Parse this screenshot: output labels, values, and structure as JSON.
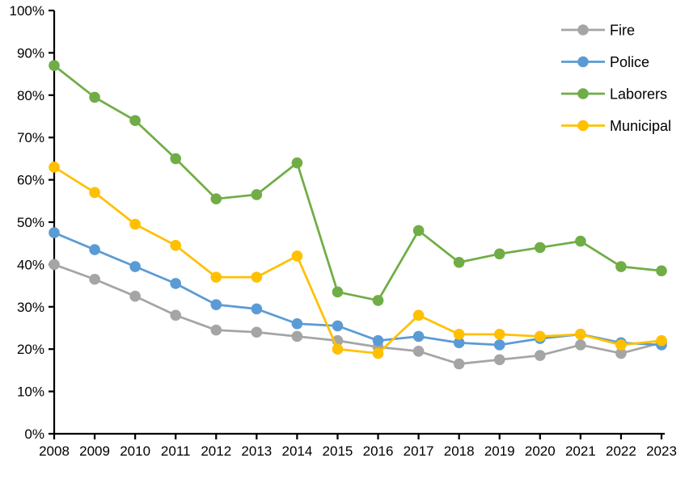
{
  "chart_data": {
    "type": "line",
    "title": "",
    "xlabel": "",
    "ylabel": "",
    "x": [
      2008,
      2009,
      2010,
      2011,
      2012,
      2013,
      2014,
      2015,
      2016,
      2017,
      2018,
      2019,
      2020,
      2021,
      2022,
      2023
    ],
    "series": [
      {
        "name": "Fire",
        "color": "#A5A5A5",
        "values": [
          40,
          36.5,
          32.5,
          28,
          24.5,
          24,
          23,
          22,
          20.5,
          19.5,
          16.5,
          17.5,
          18.5,
          21,
          19,
          21.5
        ]
      },
      {
        "name": "Police",
        "color": "#5B9BD5",
        "values": [
          47.5,
          43.5,
          39.5,
          35.5,
          30.5,
          29.5,
          26,
          25.5,
          22,
          23,
          21.5,
          21,
          22.5,
          23.5,
          21.5,
          21
        ]
      },
      {
        "name": "Laborers",
        "color": "#70AD47",
        "values": [
          87,
          79.5,
          74,
          65,
          55.5,
          56.5,
          64,
          33.5,
          31.5,
          48,
          40.5,
          42.5,
          44,
          45.5,
          39.5,
          38.5
        ]
      },
      {
        "name": "Municipal",
        "color": "#FFC000",
        "values": [
          63,
          57,
          49.5,
          44.5,
          37,
          37,
          42,
          20,
          19,
          28,
          23.5,
          23.5,
          23,
          23.5,
          21,
          22
        ]
      }
    ],
    "ylim": [
      0,
      100
    ],
    "ytick_step": 10,
    "ytick_suffix": "%",
    "grid": false,
    "legend_position": "top-right",
    "axis_color": "#000000",
    "background_color": "#FFFFFF",
    "marker_style": "circle"
  }
}
